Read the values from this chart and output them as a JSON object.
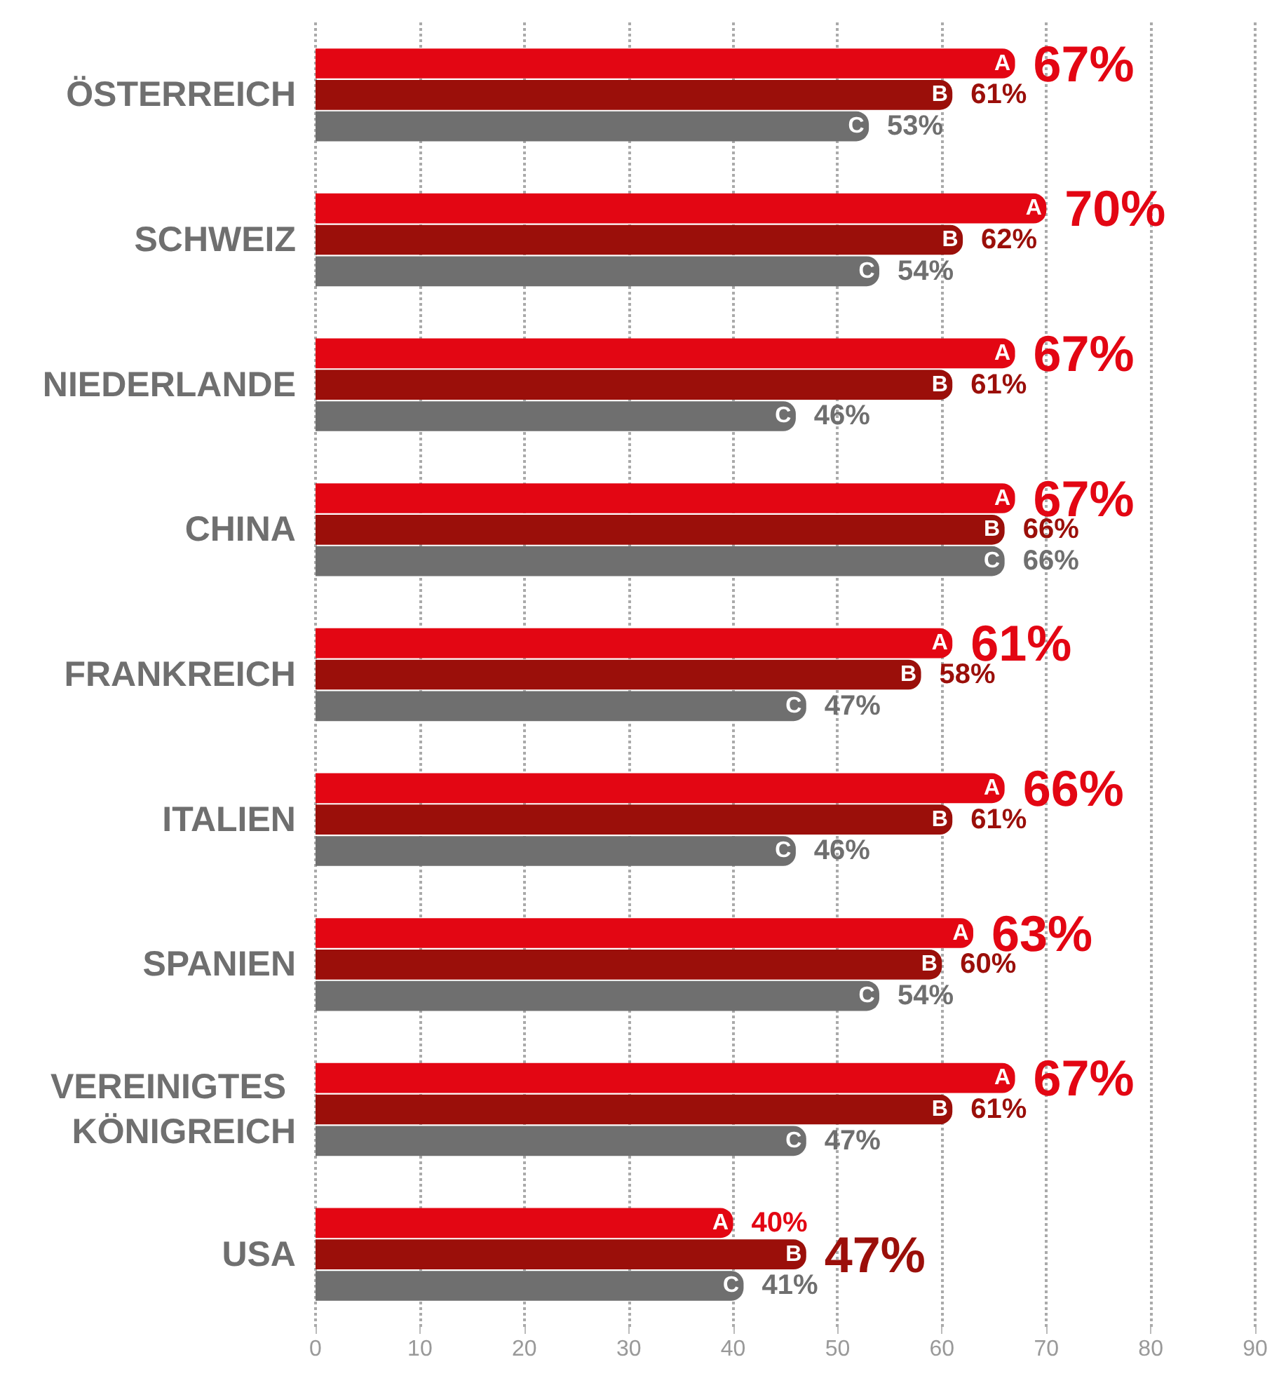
{
  "chart_data": {
    "type": "bar",
    "orientation": "horizontal",
    "categories": [
      "ÖSTERREICH",
      "SCHWEIZ",
      "NIEDERLANDE",
      "CHINA",
      "FRANKREICH",
      "ITALIEN",
      "SPANIEN",
      "VEREINIGTES KÖNIGREICH",
      "USA"
    ],
    "series": [
      {
        "name": "A",
        "color": "#e30613",
        "values": [
          67,
          70,
          67,
          67,
          61,
          66,
          63,
          67,
          40
        ],
        "value_labels": [
          "67%",
          "70%",
          "67%",
          "67%",
          "61%",
          "66%",
          "63%",
          "67%",
          "40%"
        ]
      },
      {
        "name": "B",
        "color": "#9b0f0a",
        "values": [
          61,
          62,
          61,
          66,
          58,
          61,
          60,
          61,
          47
        ],
        "value_labels": [
          "61%",
          "62%",
          "61%",
          "66%",
          "58%",
          "61%",
          "60%",
          "61%",
          "47%"
        ]
      },
      {
        "name": "C",
        "color": "#6f6f6f",
        "values": [
          53,
          54,
          46,
          66,
          47,
          46,
          54,
          47,
          41
        ],
        "value_labels": [
          "53%",
          "54%",
          "46%",
          "66%",
          "47%",
          "46%",
          "54%",
          "47%",
          "41%"
        ]
      }
    ],
    "xlim": [
      0,
      90
    ],
    "xticks": [
      0,
      10,
      20,
      30,
      40,
      50,
      60,
      70,
      80,
      90
    ],
    "grid": "x",
    "legend": false
  }
}
